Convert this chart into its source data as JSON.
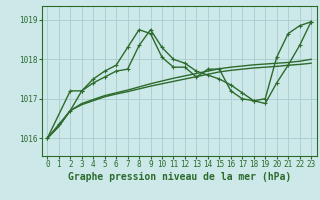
{
  "background_color": "#cce8e8",
  "grid_color": "#aacccc",
  "line_color": "#2d6b2d",
  "title": "Graphe pression niveau de la mer (hPa)",
  "ylim": [
    1015.55,
    1019.35
  ],
  "yticks": [
    1016,
    1017,
    1018,
    1019
  ],
  "xlim": [
    -0.5,
    23.5
  ],
  "xticks": [
    0,
    1,
    2,
    3,
    4,
    5,
    6,
    7,
    8,
    9,
    10,
    11,
    12,
    13,
    14,
    15,
    16,
    17,
    18,
    19,
    20,
    21,
    22,
    23
  ],
  "series": [
    {
      "x": [
        0,
        1,
        2,
        3,
        4,
        5,
        6,
        7,
        8,
        9,
        10,
        11,
        12,
        13,
        14,
        15,
        16,
        17,
        18,
        19,
        20,
        21,
        22,
        23
      ],
      "y": [
        1016.0,
        1016.3,
        1016.7,
        1016.85,
        1016.95,
        1017.05,
        1017.12,
        1017.18,
        1017.25,
        1017.32,
        1017.38,
        1017.44,
        1017.5,
        1017.56,
        1017.62,
        1017.68,
        1017.72,
        1017.75,
        1017.78,
        1017.8,
        1017.82,
        1017.85,
        1017.87,
        1017.9
      ],
      "marker": false,
      "linewidth": 1.0
    },
    {
      "x": [
        0,
        1,
        2,
        3,
        4,
        5,
        6,
        7,
        8,
        9,
        10,
        11,
        12,
        13,
        14,
        15,
        16,
        17,
        18,
        19,
        20,
        21,
        22,
        23
      ],
      "y": [
        1016.0,
        1016.3,
        1016.7,
        1016.88,
        1016.98,
        1017.08,
        1017.15,
        1017.22,
        1017.3,
        1017.38,
        1017.45,
        1017.52,
        1017.58,
        1017.64,
        1017.7,
        1017.76,
        1017.8,
        1017.83,
        1017.86,
        1017.88,
        1017.9,
        1017.92,
        1017.95,
        1018.0
      ],
      "marker": false,
      "linewidth": 1.0
    },
    {
      "x": [
        0,
        1,
        2,
        3,
        4,
        5,
        6,
        7,
        8,
        9,
        10,
        11,
        12,
        13,
        14,
        15,
        16,
        17,
        18,
        19,
        20,
        21,
        22,
        23
      ],
      "y": [
        1016.0,
        1016.35,
        1016.7,
        1017.2,
        1017.5,
        1017.7,
        1017.85,
        1018.3,
        1018.75,
        1018.65,
        1018.05,
        1017.8,
        1017.8,
        1017.55,
        1017.75,
        1017.75,
        1017.2,
        1017.0,
        1016.95,
        1017.0,
        1018.05,
        1018.65,
        1018.85,
        1018.95
      ],
      "marker": true,
      "linewidth": 1.0
    },
    {
      "x": [
        0,
        2,
        3,
        4,
        5,
        6,
        7,
        8,
        9,
        10,
        11,
        12,
        13,
        14,
        15,
        16,
        17,
        18,
        19,
        20,
        21,
        22,
        23
      ],
      "y": [
        1016.0,
        1017.2,
        1017.2,
        1017.4,
        1017.55,
        1017.7,
        1017.75,
        1018.35,
        1018.75,
        1018.3,
        1018.0,
        1017.9,
        1017.7,
        1017.6,
        1017.5,
        1017.35,
        1017.15,
        1016.95,
        1016.88,
        1017.4,
        1017.85,
        1018.35,
        1018.95
      ],
      "marker": true,
      "linewidth": 1.0
    }
  ],
  "tick_fontsize": 5.5,
  "title_fontsize": 7.0
}
